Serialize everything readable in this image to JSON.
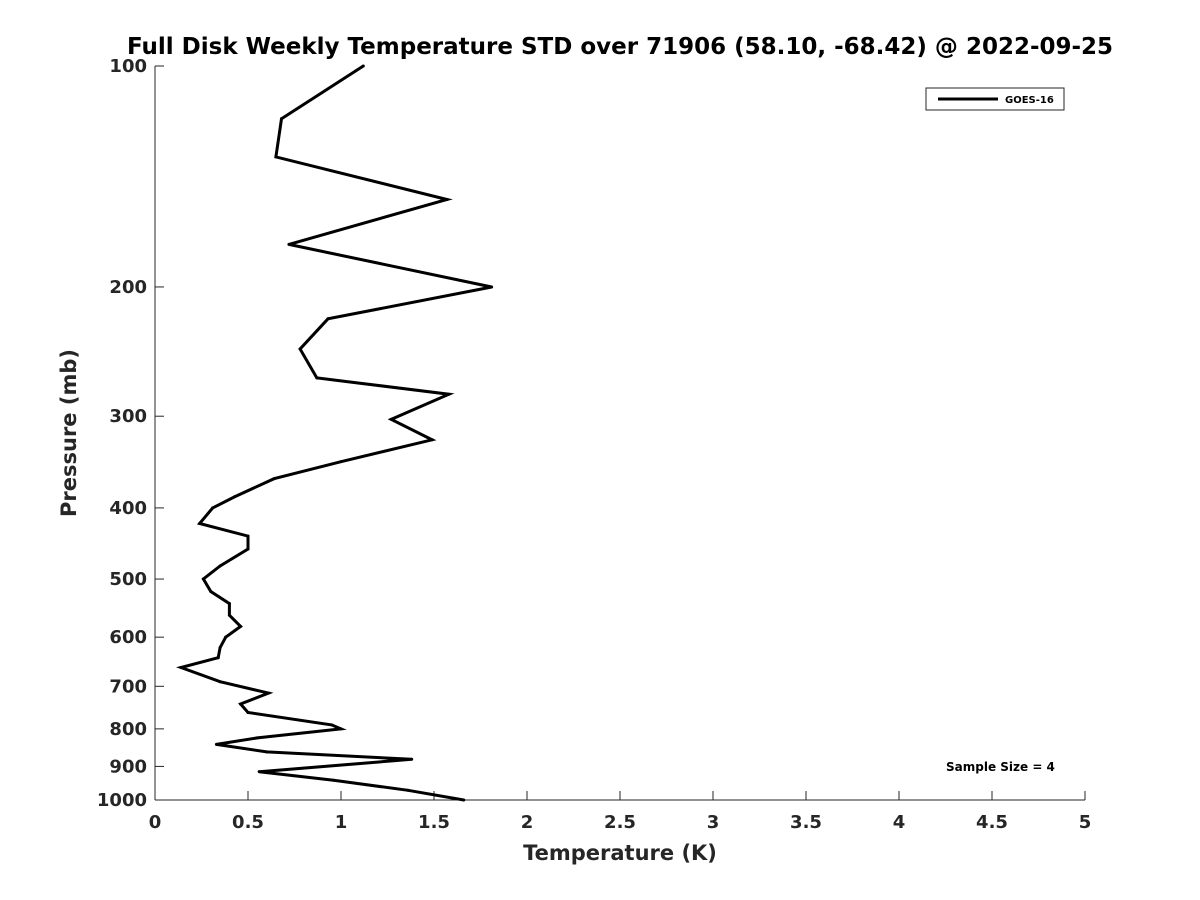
{
  "chart_data": {
    "type": "line",
    "title": "Full Disk Weekly Temperature STD over 71906 (58.10, -68.42) @ 2022-09-25",
    "xlabel": "Temperature (K)",
    "ylabel": "Pressure (mb)",
    "xlim": [
      0,
      5
    ],
    "ylim": [
      100,
      1000
    ],
    "y_scale": "log",
    "y_reversed": true,
    "xticks": [
      "0",
      "0.5",
      "1",
      "1.5",
      "2",
      "2.5",
      "3",
      "3.5",
      "4",
      "4.5",
      "5"
    ],
    "yticks": [
      "100",
      "200",
      "300",
      "400",
      "500",
      "600",
      "700",
      "800",
      "900",
      "1000"
    ],
    "legend_position": "top-right",
    "grid": false,
    "annotation": "Sample Size = 4",
    "series": [
      {
        "name": "GOES-16",
        "color": "#000000",
        "x": [
          1.12,
          0.68,
          0.65,
          1.57,
          0.72,
          1.81,
          0.93,
          0.78,
          0.87,
          1.58,
          1.27,
          1.49,
          1.0,
          0.64,
          0.43,
          0.31,
          0.24,
          0.5,
          0.5,
          0.35,
          0.26,
          0.3,
          0.4,
          0.4,
          0.46,
          0.38,
          0.35,
          0.34,
          0.14,
          0.35,
          0.61,
          0.46,
          0.5,
          0.95,
          1.0,
          0.55,
          0.33,
          0.6,
          1.38,
          0.56,
          0.96,
          1.36,
          1.66
        ],
        "y": [
          100,
          118,
          133,
          152,
          175,
          200,
          221,
          243,
          266,
          280,
          303,
          323,
          346,
          365,
          386,
          400,
          420,
          437,
          455,
          480,
          500,
          520,
          540,
          560,
          580,
          600,
          620,
          640,
          660,
          690,
          715,
          740,
          760,
          790,
          800,
          823,
          840,
          860,
          880,
          915,
          940,
          970,
          1000
        ]
      }
    ]
  }
}
